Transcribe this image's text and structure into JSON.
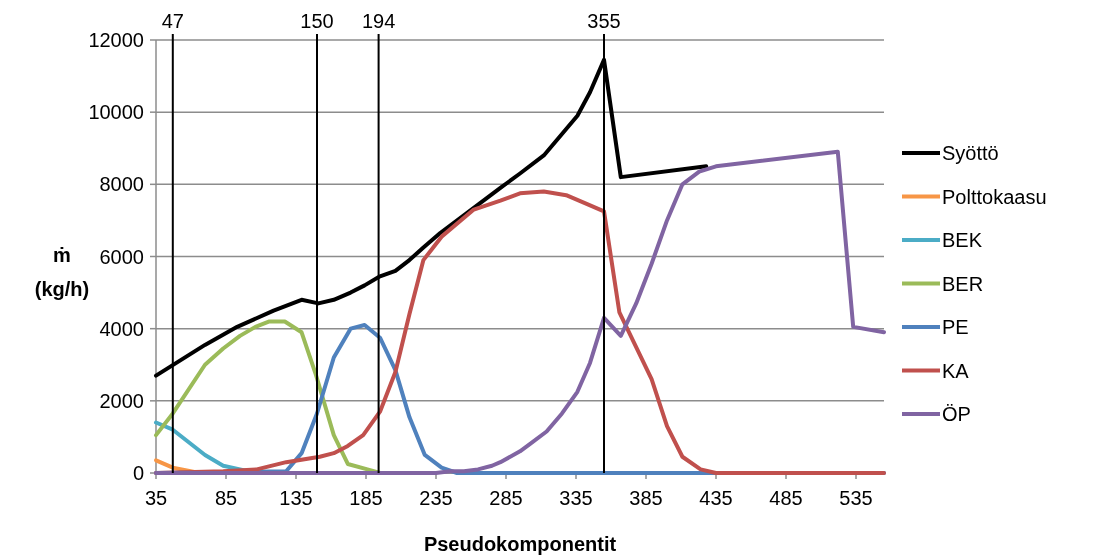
{
  "chart_data": {
    "type": "line",
    "xlabel": "Pseudokomponentit",
    "ylabel": "ṁ (kg/h)",
    "xlim": [
      35,
      555
    ],
    "xticks": [
      35,
      85,
      135,
      185,
      235,
      285,
      335,
      385,
      435,
      485,
      535
    ],
    "ylim": [
      0,
      12000
    ],
    "yticks": [
      0,
      2000,
      4000,
      6000,
      8000,
      10000,
      12000
    ],
    "grid": "y",
    "legend": "right",
    "marker": "none",
    "line_style": "solid",
    "ref_lines": [
      {
        "axis": "x",
        "value": 47,
        "label": "47",
        "color": "#000000"
      },
      {
        "axis": "x",
        "value": 150,
        "label": "150",
        "color": "#000000"
      },
      {
        "axis": "x",
        "value": 194,
        "label": "194",
        "color": "#000000"
      },
      {
        "axis": "x",
        "value": 355,
        "label": "355",
        "color": "#000000"
      }
    ],
    "series": [
      {
        "name": "Syöttö",
        "color": "#000000",
        "x": [
          35,
          70,
          93,
          119,
          139,
          151,
          162,
          174,
          184,
          195,
          206,
          216,
          226,
          238,
          281,
          295,
          312,
          336,
          345,
          355,
          367,
          428
        ],
        "values": [
          2700,
          3550,
          4050,
          4500,
          4800,
          4700,
          4800,
          5000,
          5200,
          5450,
          5600,
          5900,
          6250,
          6650,
          7900,
          8300,
          8800,
          9900,
          10550,
          11450,
          8200,
          8500
        ]
      },
      {
        "name": "Polttokaasu",
        "color": "#f79646",
        "x": [
          35,
          47,
          66
        ],
        "values": [
          350,
          150,
          0
        ]
      },
      {
        "name": "BEK",
        "color": "#4bacc6",
        "x": [
          35,
          47,
          70,
          83,
          95,
          107
        ],
        "values": [
          1400,
          1200,
          500,
          200,
          100,
          0
        ]
      },
      {
        "name": "BER",
        "color": "#9bbb59",
        "x": [
          35,
          47,
          70,
          83,
          95,
          106,
          116,
          127,
          139,
          149,
          162,
          172,
          186,
          195
        ],
        "values": [
          1050,
          1650,
          3000,
          3450,
          3800,
          4050,
          4200,
          4200,
          3900,
          2750,
          1050,
          250,
          100,
          0
        ]
      },
      {
        "name": "PE",
        "color": "#4f81bd",
        "x": [
          35,
          128,
          139,
          150,
          162,
          174,
          184,
          195,
          206,
          216,
          227,
          239,
          250,
          555
        ],
        "values": [
          0,
          50,
          550,
          1650,
          3200,
          4000,
          4100,
          3750,
          2850,
          1550,
          500,
          150,
          0,
          0
        ]
      },
      {
        "name": "KA",
        "color": "#c0504d",
        "x": [
          35,
          83,
          107,
          128,
          152,
          162,
          172,
          183,
          195,
          206,
          216,
          226,
          239,
          262,
          281,
          295,
          312,
          328,
          343,
          355,
          366,
          389,
          400,
          411,
          424,
          435,
          555
        ],
        "values": [
          0,
          50,
          100,
          300,
          450,
          550,
          750,
          1050,
          1700,
          2800,
          4400,
          5900,
          6550,
          7300,
          7550,
          7750,
          7800,
          7700,
          7450,
          7250,
          4450,
          2600,
          1300,
          450,
          100,
          0,
          0
        ]
      },
      {
        "name": "ÖP",
        "color": "#8064a2",
        "x": [
          35,
          235,
          245,
          255,
          265,
          275,
          281,
          295,
          302,
          314,
          325,
          336,
          345,
          355,
          367,
          378,
          389,
          400,
          411,
          423,
          435,
          522,
          533,
          555
        ],
        "values": [
          0,
          0,
          50,
          50,
          100,
          200,
          300,
          600,
          800,
          1150,
          1650,
          2250,
          3050,
          4300,
          3800,
          4700,
          5800,
          7000,
          8000,
          8350,
          8500,
          8900,
          4050,
          3900
        ]
      }
    ]
  }
}
